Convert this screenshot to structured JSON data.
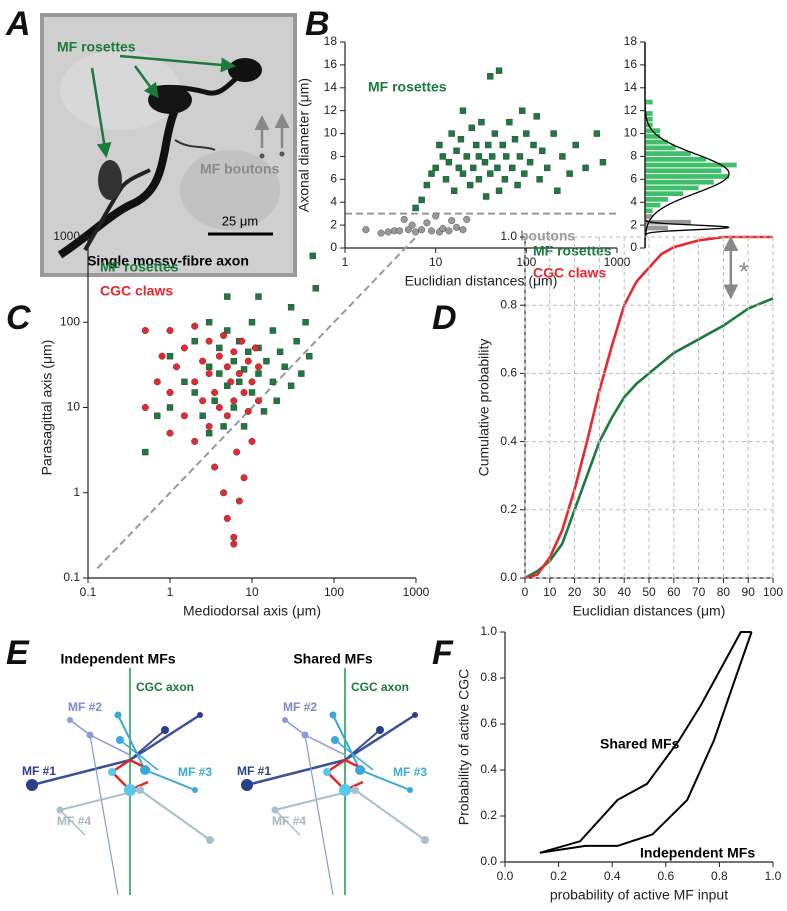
{
  "panel_labels": [
    "A",
    "B",
    "C",
    "D",
    "E",
    "F"
  ],
  "image_a": {
    "rosettes": "MF rosettes",
    "boutons": "MF boutons",
    "scale": "25 μm",
    "caption": "Single mossy-fibre axon"
  },
  "diagram_e": {
    "titles": [
      "Independent MFs",
      "Shared MFs"
    ],
    "axon": "CGC axon",
    "mf": [
      "MF #1",
      "MF #2",
      "MF #3",
      "MF #4"
    ]
  },
  "chart_data": [
    {
      "type": "scatter",
      "x_label": "Euclidian distances (μm)",
      "y_label": "Axonal diameter (μm)",
      "log_x": true,
      "xlim": [
        1,
        1000
      ],
      "xticks": [
        1,
        10,
        100,
        1000
      ],
      "ylim": [
        0,
        18
      ],
      "yticks": [
        0,
        2,
        4,
        6,
        8,
        10,
        12,
        14,
        16,
        18
      ],
      "hline": 3,
      "series": [
        {
          "name": "MF rosettes",
          "color": "#1c7a3d",
          "marker": "square",
          "x": [
            6,
            7,
            8,
            9,
            10,
            11,
            12,
            13,
            14,
            15,
            16,
            17,
            18,
            19,
            20,
            20,
            22,
            24,
            25,
            26,
            28,
            30,
            30,
            32,
            35,
            36,
            38,
            40,
            40,
            42,
            45,
            48,
            50,
            50,
            55,
            58,
            60,
            65,
            70,
            75,
            80,
            85,
            90,
            95,
            100,
            110,
            120,
            130,
            140,
            150,
            170,
            200,
            220,
            250,
            300,
            350,
            450,
            600,
            700
          ],
          "values": [
            3.5,
            4.2,
            5.5,
            6.5,
            7,
            9,
            8,
            6,
            7.5,
            10,
            5,
            8.5,
            7,
            9.5,
            12,
            6.5,
            8,
            5.5,
            10.5,
            7,
            9,
            6,
            8,
            11,
            7.5,
            4.5,
            9,
            6.5,
            15,
            8,
            10,
            7,
            5,
            15.5,
            9,
            6,
            8,
            11,
            7,
            9.5,
            5.5,
            8,
            12,
            6.5,
            10,
            7.5,
            9,
            11.5,
            6,
            8.5,
            7,
            10,
            5,
            8,
            6.5,
            9,
            7,
            10,
            7.5
          ]
        },
        {
          "name": "boutons",
          "color": "#999999",
          "marker": "circle",
          "x": [
            1.7,
            2.5,
            3,
            3.5,
            4,
            4.5,
            5,
            5.5,
            6,
            7,
            8,
            9,
            10,
            11,
            12,
            14,
            15,
            17,
            20,
            22
          ],
          "values": [
            1.6,
            1.3,
            1.4,
            1.5,
            1.5,
            2.5,
            1.6,
            2,
            1.4,
            1.6,
            2.2,
            1.5,
            2.8,
            1.4,
            1.7,
            1.5,
            2.4,
            1.8,
            1.6,
            2.5
          ]
        }
      ]
    },
    {
      "type": "histogram",
      "orientation": "horizontal",
      "ylim": [
        0,
        18
      ],
      "yticks": [
        0,
        2,
        4,
        6,
        8,
        10,
        12,
        14,
        16,
        18
      ],
      "xlim": [
        0,
        14
      ],
      "bins": [
        1,
        1.5,
        2,
        2.5,
        3,
        3.5,
        4,
        4.5,
        5,
        5.5,
        6,
        6.5,
        7,
        7.5,
        8,
        8.5,
        9,
        9.5,
        10,
        10.5,
        11,
        11.5,
        12,
        12.5,
        13
      ],
      "series": [
        {
          "color": "#999999",
          "counts": [
            0,
            3,
            6,
            1,
            0,
            0,
            0,
            0,
            0,
            0,
            0,
            0,
            0,
            0,
            0,
            0,
            0,
            0,
            0,
            0,
            0,
            0,
            0,
            0
          ]
        },
        {
          "color": "#3fbf6a",
          "counts": [
            0,
            0,
            0,
            0,
            1,
            2,
            3,
            5,
            7,
            9,
            11,
            10,
            12,
            8,
            6,
            4,
            3,
            2,
            2,
            1,
            1,
            1,
            0,
            1
          ]
        }
      ],
      "curves": [
        {
          "color": "#000000",
          "mean": 6.5,
          "sd": 1.7,
          "peak": 11
        },
        {
          "color": "#000000",
          "mean": 1.8,
          "sd": 0.2,
          "peak": 11
        }
      ]
    },
    {
      "type": "scatter",
      "x_label": "Mediodorsal axis (μm)",
      "y_label": "Parasagittal axis (μm)",
      "log_x": true,
      "log_y": true,
      "diagonal": true,
      "xlim": [
        0.1,
        1000
      ],
      "xticks": [
        0.1,
        1,
        10,
        100,
        1000
      ],
      "ylim": [
        0.1,
        1000
      ],
      "yticks": [
        0.1,
        1,
        10,
        100,
        1000
      ],
      "series": [
        {
          "name": "MF rosettes",
          "color": "#1c7a3d",
          "marker": "square",
          "x": [
            0.5,
            0.7,
            1,
            1,
            1.5,
            2,
            2,
            2.5,
            3,
            3,
            3.5,
            4,
            4,
            4.5,
            5,
            5,
            6,
            6,
            7,
            7,
            8,
            8,
            9,
            10,
            10,
            12,
            12,
            14,
            15,
            18,
            18,
            20,
            22,
            25,
            30,
            30,
            35,
            40,
            45,
            50,
            55,
            60,
            12,
            5,
            3
          ],
          "values": [
            3,
            8,
            10,
            40,
            20,
            15,
            60,
            8,
            30,
            100,
            12,
            25,
            50,
            6,
            18,
            80,
            35,
            10,
            20,
            60,
            28,
            6,
            45,
            15,
            100,
            25,
            50,
            9,
            35,
            20,
            80,
            12,
            45,
            30,
            18,
            150,
            60,
            25,
            100,
            40,
            600,
            250,
            200,
            200,
            5
          ]
        },
        {
          "name": "CGC claws",
          "color": "#e8282f",
          "marker": "circle",
          "x": [
            0.5,
            0.5,
            0.7,
            0.8,
            1,
            1,
            1,
            1.2,
            1.5,
            1.5,
            2,
            2,
            2,
            2.5,
            2.5,
            3,
            3,
            3,
            3.5,
            3.5,
            4,
            4,
            4.5,
            4.5,
            5,
            5,
            5,
            5.5,
            6,
            6,
            6,
            6.5,
            7,
            7,
            7.5,
            8,
            8,
            9,
            9,
            10,
            10,
            11,
            12,
            12,
            6
          ],
          "values": [
            80,
            10,
            20,
            40,
            5,
            80,
            15,
            30,
            8,
            50,
            4,
            20,
            90,
            12,
            35,
            6,
            60,
            25,
            15,
            2,
            40,
            10,
            1,
            70,
            30,
            8,
            0.5,
            20,
            0.3,
            45,
            12,
            3,
            25,
            0.8,
            60,
            15,
            1.5,
            35,
            9,
            20,
            4,
            50,
            12,
            30,
            0.25
          ]
        }
      ]
    },
    {
      "type": "line",
      "x_label": "Euclidian distances (μm)",
      "y_label": "Cumulative probability",
      "grid": true,
      "xlim": [
        0,
        100
      ],
      "xticks": [
        0,
        10,
        20,
        30,
        40,
        50,
        60,
        70,
        80,
        90,
        100
      ],
      "ylim": [
        0,
        1
      ],
      "yticks": [
        {
          "value": 0,
          "label": "0.0"
        },
        0.2,
        0.4,
        0.6,
        0.8,
        {
          "value": 1,
          "label": "1.0"
        }
      ],
      "annotation": "*",
      "gap_x": 83,
      "gap": [
        0.82,
        1.0
      ],
      "series": [
        {
          "name": "MF rosettes",
          "color": "#1c7a3d",
          "x": [
            0,
            5,
            10,
            15,
            20,
            25,
            30,
            35,
            40,
            45,
            50,
            55,
            60,
            70,
            80,
            90,
            100
          ],
          "values": [
            0,
            0.02,
            0.05,
            0.1,
            0.2,
            0.3,
            0.4,
            0.47,
            0.53,
            0.57,
            0.6,
            0.63,
            0.66,
            0.7,
            0.74,
            0.79,
            0.82
          ]
        },
        {
          "name": "CGC claws",
          "color": "#e8282f",
          "x": [
            0,
            5,
            10,
            15,
            20,
            25,
            30,
            35,
            40,
            45,
            50,
            55,
            60,
            70,
            80,
            90,
            100
          ],
          "values": [
            0,
            0.01,
            0.06,
            0.14,
            0.26,
            0.4,
            0.55,
            0.68,
            0.8,
            0.87,
            0.91,
            0.95,
            0.97,
            0.99,
            1.0,
            1.0,
            1.0
          ]
        }
      ]
    },
    {
      "type": "line",
      "x_label": "probability of active MF input",
      "y_label": "Probability of active CGC",
      "xlim": [
        0,
        1
      ],
      "xticks": [
        {
          "value": 0,
          "label": "0.0"
        },
        0.2,
        0.4,
        0.6,
        0.8,
        {
          "value": 1,
          "label": "1.0"
        }
      ],
      "ylim": [
        0,
        1
      ],
      "yticks": [
        {
          "value": 0,
          "label": "0.0"
        },
        0.2,
        0.4,
        0.6,
        0.8,
        {
          "value": 1,
          "label": "1.0"
        }
      ],
      "series": [
        {
          "name": "Shared MFs",
          "color": "#000000",
          "x": [
            0.13,
            0.28,
            0.42,
            0.53,
            0.65,
            0.73,
            0.88,
            0.92
          ],
          "values": [
            0.04,
            0.09,
            0.27,
            0.34,
            0.53,
            0.68,
            1.0,
            1.0
          ]
        },
        {
          "name": "Independent MFs",
          "color": "#000000",
          "x": [
            0.13,
            0.3,
            0.42,
            0.55,
            0.68,
            0.78,
            0.86,
            0.92
          ],
          "values": [
            0.04,
            0.07,
            0.07,
            0.12,
            0.27,
            0.53,
            0.8,
            1.0
          ]
        }
      ]
    }
  ]
}
